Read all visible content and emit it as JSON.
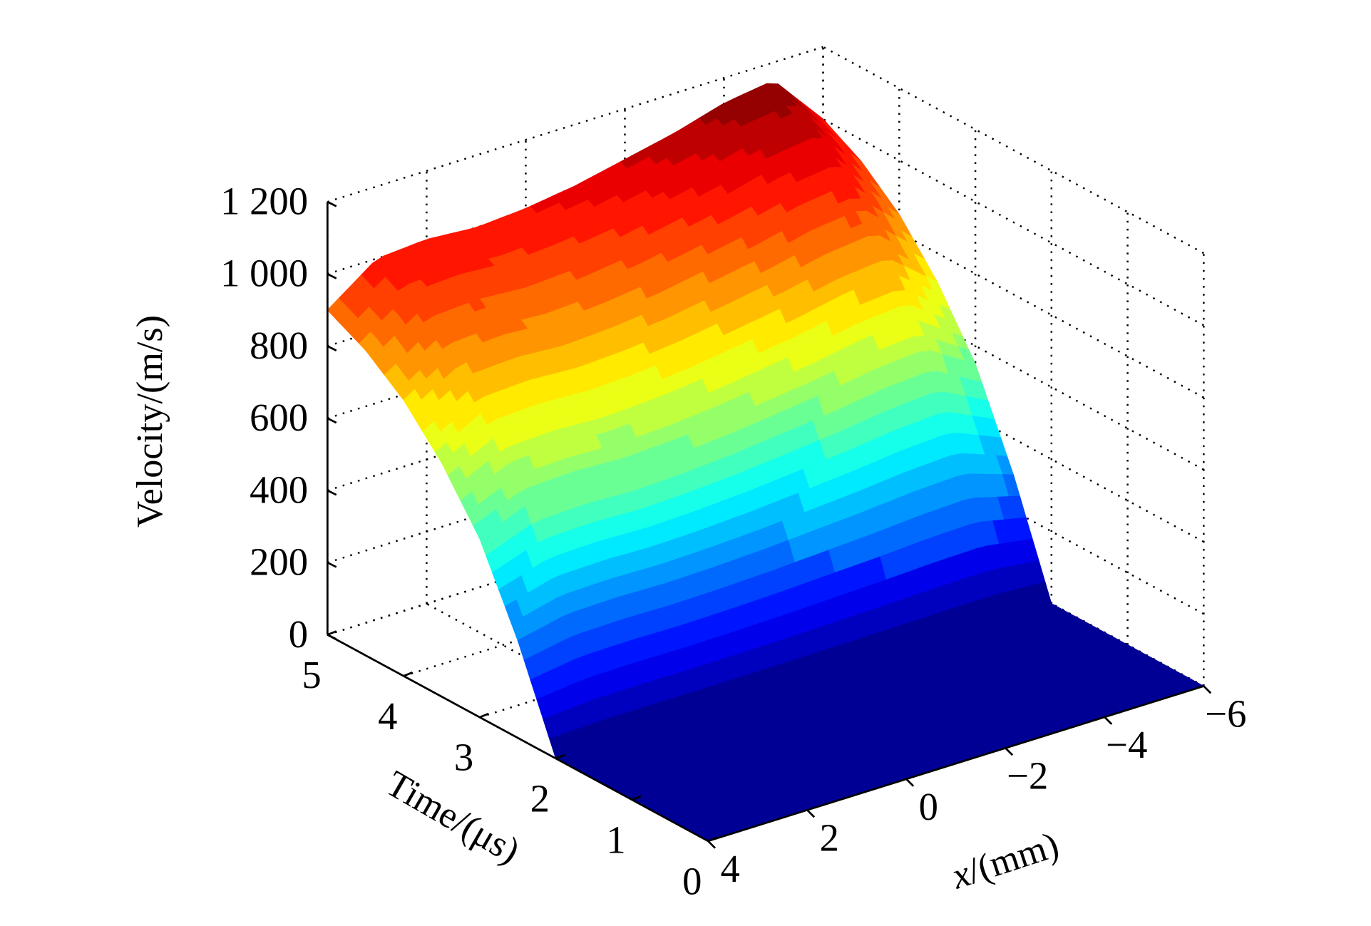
{
  "chart_data": {
    "type": "surface",
    "title": "",
    "xlabel": "x/(mm)",
    "xlabel_italic_part": "x",
    "xlabel_rest": "/(mm)",
    "ylabel": "Time/(μs)",
    "zlabel": "Velocity/(m/s)",
    "x_ticks": [
      4,
      2,
      0,
      -2,
      -4,
      -6
    ],
    "x_tick_labels": [
      "4",
      "2",
      "0",
      "−2",
      "−4",
      "−6"
    ],
    "y_ticks": [
      0,
      1,
      2,
      3,
      4,
      5
    ],
    "y_tick_labels": [
      "0",
      "1",
      "2",
      "3",
      "4",
      "5"
    ],
    "z_ticks": [
      0,
      200,
      400,
      600,
      800,
      1000,
      1200
    ],
    "z_tick_labels": [
      "0",
      "200",
      "400",
      "600",
      "800",
      "1 000",
      "1 200"
    ],
    "xlim": [
      -6,
      4
    ],
    "ylim": [
      0,
      5
    ],
    "zlim": [
      0,
      1200
    ],
    "colormap": "jet",
    "color_range": [
      0,
      1150
    ],
    "grid": true,
    "surface": {
      "x": [
        4,
        3,
        2,
        1,
        0,
        -1,
        -2,
        -3,
        -4,
        -5,
        -6
      ],
      "time": [
        0,
        1,
        2,
        2.5,
        3,
        3.5,
        4,
        4.5,
        5
      ],
      "velocity": [
        [
          0,
          0,
          0,
          0,
          0,
          0,
          0,
          0,
          0,
          0,
          0
        ],
        [
          0,
          0,
          0,
          0,
          0,
          0,
          0,
          0,
          0,
          0,
          0
        ],
        [
          0,
          0,
          0,
          0,
          0,
          0,
          0,
          0,
          0,
          0,
          0
        ],
        [
          270,
          300,
          303,
          300,
          303,
          309,
          318,
          327,
          339,
          345,
          300
        ],
        [
          495,
          550,
          556,
          550,
          556,
          567,
          583,
          600,
          622,
          633,
          550
        ],
        [
          648,
          720,
          727,
          720,
          727,
          742,
          763,
          785,
          814,
          828,
          720
        ],
        [
          765,
          850,
          859,
          850,
          859,
          876,
          901,
          927,
          961,
          978,
          850
        ],
        [
          846,
          940,
          949,
          940,
          949,
          968,
          996,
          1025,
          1062,
          1081,
          940
        ],
        [
          900,
          1000,
          1010,
          1000,
          1010,
          1030,
          1060,
          1090,
          1130,
          1150,
          1000
        ]
      ]
    }
  }
}
